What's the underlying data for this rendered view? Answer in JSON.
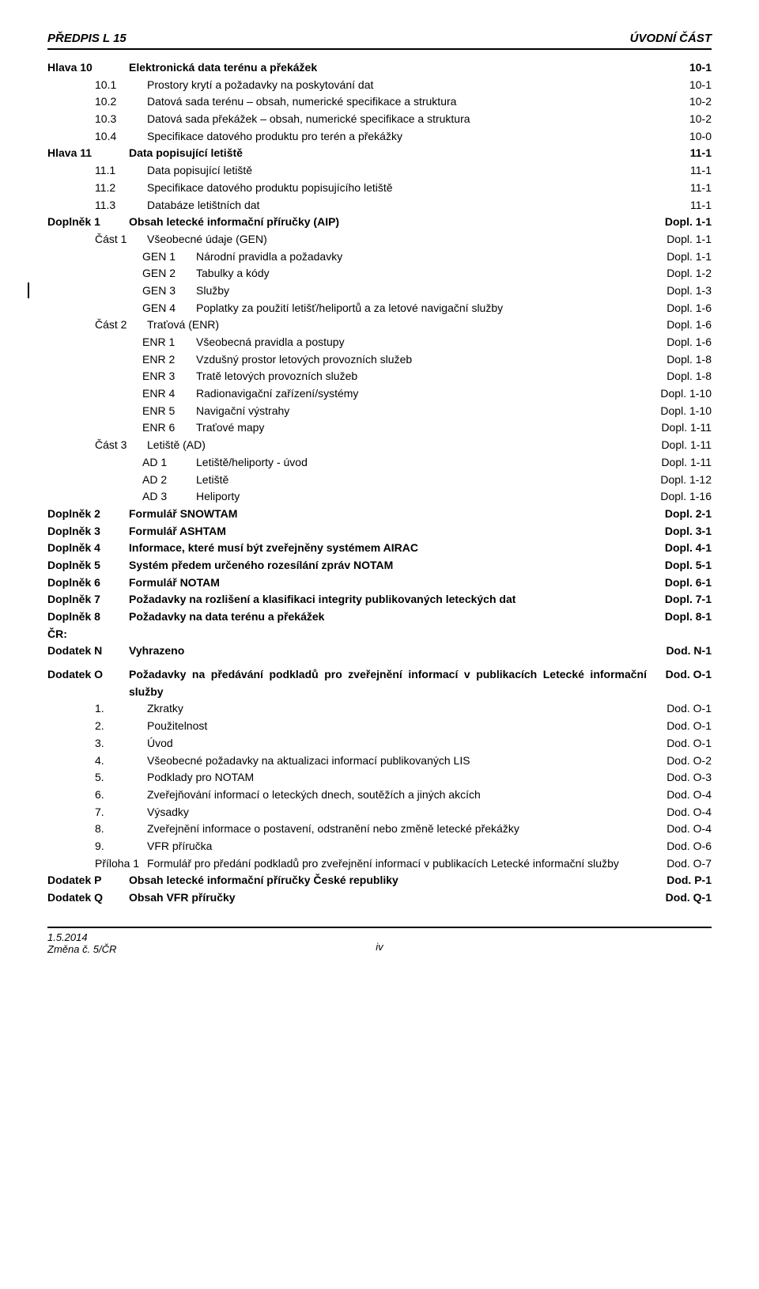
{
  "header": {
    "left": "PŘEDPIS L 15",
    "right": "ÚVODNÍ ČÁST"
  },
  "entries": [
    {
      "lvl": 0,
      "bold": true,
      "label": "Hlava 10",
      "title": "Elektronická data terénu a překážek",
      "page": "10-1"
    },
    {
      "lvl": 1,
      "bold": false,
      "label": "10.1",
      "title": "Prostory krytí a požadavky na poskytování dat",
      "page": "10-1"
    },
    {
      "lvl": 1,
      "bold": false,
      "label": "10.2",
      "title": "Datová sada terénu – obsah, numerické specifikace a struktura",
      "page": "10-2"
    },
    {
      "lvl": 1,
      "bold": false,
      "label": "10.3",
      "title": "Datová sada překážek – obsah, numerické specifikace a struktura",
      "page": "10-2"
    },
    {
      "lvl": 1,
      "bold": false,
      "label": "10.4",
      "title": "Specifikace datového produktu pro terén a překážky",
      "page": "10-0"
    },
    {
      "lvl": 0,
      "bold": true,
      "label": "Hlava 11",
      "title": "Data popisující letiště",
      "page": "11-1"
    },
    {
      "lvl": 1,
      "bold": false,
      "label": "11.1",
      "title": "Data popisující letiště",
      "page": "11-1"
    },
    {
      "lvl": 1,
      "bold": false,
      "label": "11.2",
      "title": "Specifikace datového produktu popisujícího letiště",
      "page": "11-1"
    },
    {
      "lvl": 1,
      "bold": false,
      "label": "11.3",
      "title": "Databáze letištních dat",
      "page": "11-1"
    },
    {
      "lvl": 0,
      "bold": true,
      "label": "Doplněk 1",
      "title": "Obsah letecké informační příručky (AIP)",
      "page": "Dopl. 1-1"
    },
    {
      "lvl": 1,
      "bold": false,
      "label": "Část 1",
      "title": "Všeobecné údaje (GEN)",
      "page": "Dopl. 1-1"
    },
    {
      "lvl": 2,
      "bold": false,
      "label": "GEN 1",
      "title": "Národní pravidla a požadavky",
      "page": "Dopl. 1-1"
    },
    {
      "lvl": 2,
      "bold": false,
      "label": "GEN 2",
      "title": "Tabulky a kódy",
      "page": "Dopl. 1-2"
    },
    {
      "lvl": 2,
      "bold": false,
      "label": "GEN 3",
      "title": "Služby",
      "page": "Dopl. 1-3",
      "edit": true
    },
    {
      "lvl": 2,
      "bold": false,
      "label": "GEN 4",
      "title": "Poplatky za použití letišť/heliportů a za letové navigační služby",
      "page": "Dopl. 1-6"
    },
    {
      "lvl": 1,
      "bold": false,
      "label": "Část 2",
      "title": "Traťová (ENR)",
      "page": "Dopl. 1-6"
    },
    {
      "lvl": 2,
      "bold": false,
      "label": "ENR 1",
      "title": "Všeobecná pravidla a postupy",
      "page": "Dopl. 1-6"
    },
    {
      "lvl": 2,
      "bold": false,
      "label": "ENR 2",
      "title": "Vzdušný prostor letových provozních služeb",
      "page": "Dopl. 1-8"
    },
    {
      "lvl": 2,
      "bold": false,
      "label": "ENR 3",
      "title": "Tratě letových provozních služeb",
      "page": "Dopl. 1-8"
    },
    {
      "lvl": 2,
      "bold": false,
      "label": "ENR 4",
      "title": "Radionavigační zařízení/systémy",
      "page": "Dopl. 1-10"
    },
    {
      "lvl": 2,
      "bold": false,
      "label": "ENR 5",
      "title": "Navigační výstrahy",
      "page": "Dopl. 1-10"
    },
    {
      "lvl": 2,
      "bold": false,
      "label": "ENR 6",
      "title": "Traťové mapy",
      "page": "Dopl. 1-11"
    },
    {
      "lvl": 1,
      "bold": false,
      "label": "Část 3",
      "title": "Letiště (AD)",
      "page": "Dopl. 1-11"
    },
    {
      "lvl": 2,
      "bold": false,
      "label": "AD 1",
      "title": "Letiště/heliporty - úvod",
      "page": "Dopl. 1-11"
    },
    {
      "lvl": 2,
      "bold": false,
      "label": "AD 2",
      "title": "Letiště",
      "page": "Dopl. 1-12"
    },
    {
      "lvl": 2,
      "bold": false,
      "label": "AD 3",
      "title": "Heliporty",
      "page": "Dopl. 1-16"
    },
    {
      "lvl": 0,
      "bold": true,
      "label": "Doplněk 2",
      "title": "Formulář SNOWTAM",
      "page": "Dopl. 2-1"
    },
    {
      "lvl": 0,
      "bold": true,
      "label": "Doplněk 3",
      "title": "Formulář ASHTAM",
      "page": "Dopl. 3-1"
    },
    {
      "lvl": 0,
      "bold": true,
      "label": "Doplněk 4",
      "title": "Informace, které musí být zveřejněny systémem AIRAC",
      "page": "Dopl. 4-1"
    },
    {
      "lvl": 0,
      "bold": true,
      "label": "Doplněk 5",
      "title": "Systém předem určeného rozesílání zpráv NOTAM",
      "page": "Dopl. 5-1"
    },
    {
      "lvl": 0,
      "bold": true,
      "label": "Doplněk 6",
      "title": "Formulář NOTAM",
      "page": "Dopl. 6-1"
    },
    {
      "lvl": 0,
      "bold": true,
      "label": "Doplněk 7",
      "title": "Požadavky na rozlišení a klasifikaci integrity publikovaných leteckých dat",
      "page": "Dopl. 7-1"
    },
    {
      "lvl": 0,
      "bold": true,
      "label": "Doplněk 8",
      "title": "Požadavky na data terénu a překážek",
      "page": "Dopl. 8-1"
    },
    {
      "lvl": 0,
      "bold": true,
      "label": "ČR:",
      "title": "",
      "page": ""
    },
    {
      "lvl": 0,
      "bold": true,
      "label": "Dodatek N",
      "title": "Vyhrazeno",
      "page": "Dod. N-1"
    },
    {
      "gap": true
    },
    {
      "lvl": 0,
      "bold": true,
      "label": "Dodatek O",
      "title": "Požadavky na předávání podkladů pro zveřejnění informací v publikacích Letecké informační služby",
      "page": "Dod. O-1"
    },
    {
      "lvl": 1,
      "bold": false,
      "label": "1.",
      "title": "Zkratky",
      "page": "Dod. O-1"
    },
    {
      "lvl": 1,
      "bold": false,
      "label": "2.",
      "title": "Použitelnost",
      "page": "Dod. O-1"
    },
    {
      "lvl": 1,
      "bold": false,
      "label": "3.",
      "title": "Úvod",
      "page": "Dod. O-1"
    },
    {
      "lvl": 1,
      "bold": false,
      "label": "4.",
      "title": "Všeobecné požadavky na aktualizaci informací publikovaných LIS",
      "page": "Dod. O-2"
    },
    {
      "lvl": 1,
      "bold": false,
      "label": "5.",
      "title": "Podklady pro NOTAM",
      "page": "Dod. O-3"
    },
    {
      "lvl": 1,
      "bold": false,
      "label": "6.",
      "title": "Zveřejňování informací o leteckých dnech, soutěžích a jiných akcích",
      "page": "Dod. O-4"
    },
    {
      "lvl": 1,
      "bold": false,
      "label": "7.",
      "title": "Výsadky",
      "page": "Dod. O-4"
    },
    {
      "lvl": 1,
      "bold": false,
      "label": "8.",
      "title": "Zveřejnění informace o postavení, odstranění nebo změně letecké překážky",
      "page": "Dod. O-4"
    },
    {
      "lvl": 1,
      "bold": false,
      "label": "9.",
      "title": "VFR příručka",
      "page": "Dod. O-6"
    },
    {
      "lvl": 1,
      "bold": false,
      "label": "Příloha 1",
      "title": "Formulář pro předání podkladů pro zveřejnění informací v publikacích Letecké informační služby",
      "page": "Dod. O-7"
    },
    {
      "lvl": 0,
      "bold": true,
      "label": "Dodatek P",
      "title": "Obsah letecké informační příručky České republiky",
      "page": "Dod. P-1"
    },
    {
      "lvl": 0,
      "bold": true,
      "label": "Dodatek Q",
      "title": "Obsah VFR příručky",
      "page": "Dod. Q-1"
    }
  ],
  "footer": {
    "date": "1.5.2014",
    "change": "Změna č. 5/ČR",
    "pagenum": "iv"
  },
  "layout": {
    "label_widths": [
      "95px",
      "58px",
      "60px",
      "60px"
    ],
    "title_justify": [
      "flex-start",
      "flex-start",
      "flex-start",
      "space-between"
    ]
  }
}
